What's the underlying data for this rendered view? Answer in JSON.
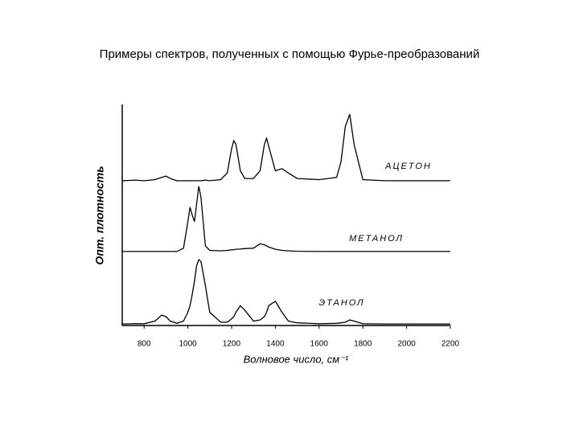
{
  "chart_data": {
    "type": "line",
    "title": "Примеры спектров, полученных с помощью Фурье-преобразований",
    "x_label": "Волновое число, см⁻¹",
    "y_label": "Опт. плотность",
    "x": [
      700,
      760,
      800,
      850,
      880,
      900,
      920,
      950,
      980,
      1000,
      1010,
      1020,
      1030,
      1040,
      1050,
      1060,
      1080,
      1100,
      1150,
      1180,
      1200,
      1210,
      1220,
      1240,
      1260,
      1300,
      1330,
      1350,
      1360,
      1370,
      1400,
      1430,
      1460,
      1500,
      1600,
      1680,
      1700,
      1720,
      1740,
      1760,
      1800,
      1900,
      2000,
      2100,
      2200
    ],
    "series": [
      {
        "name": "АЦЕТОН",
        "color": "#000000",
        "values": [
          65.5,
          65.8,
          65.5,
          66,
          67,
          67.6,
          66.5,
          65.5,
          65.5,
          65.5,
          65.5,
          65.5,
          65.5,
          65.5,
          65.5,
          65.5,
          65.8,
          65.5,
          66,
          69,
          80,
          83.6,
          82,
          70,
          66.5,
          66.5,
          70,
          82,
          84.7,
          81,
          70,
          71,
          69,
          66.5,
          66,
          67,
          74,
          90,
          95.6,
          82,
          66,
          65.5,
          65.5,
          65.5,
          65.5
        ]
      },
      {
        "name": "МЕТАНОЛ",
        "color": "#000000",
        "values": [
          33.5,
          33.5,
          33.5,
          33.5,
          33.5,
          33.5,
          33.5,
          33.5,
          35,
          47,
          53.5,
          50,
          47,
          55,
          63,
          58,
          36,
          34,
          33.8,
          34,
          34.2,
          34.3,
          34.5,
          34.6,
          34.8,
          35,
          37,
          36.5,
          36,
          35.5,
          34.5,
          34,
          33.8,
          33.6,
          33.5,
          33.5,
          33.5,
          33.5,
          33.5,
          33.5,
          33.5,
          33.5,
          33.5,
          33.5,
          33.5
        ]
      },
      {
        "name": "ЭТАНОЛ",
        "color": "#000000",
        "values": [
          0.7,
          0.8,
          0.8,
          2,
          4.7,
          4,
          2,
          1,
          2,
          6,
          9,
          14,
          20,
          27,
          29.8,
          29,
          18,
          6,
          1.5,
          1.5,
          3,
          4,
          6,
          9,
          7,
          2,
          2.5,
          4,
          6,
          9,
          11,
          6,
          2,
          1.2,
          0.8,
          1,
          1.2,
          1.5,
          2.5,
          2,
          0.8,
          0.7,
          0.7,
          0.7,
          0.7
        ]
      }
    ],
    "xlim": [
      700,
      2200
    ],
    "xticks": [
      800,
      1000,
      1200,
      1400,
      1600,
      1800,
      2000,
      2200
    ],
    "ylim": [
      0,
      100
    ],
    "grid": false
  }
}
